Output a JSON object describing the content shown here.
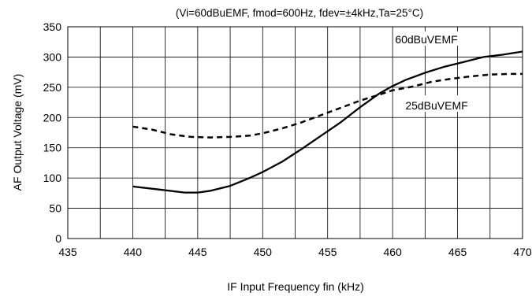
{
  "chart_data": {
    "type": "line",
    "title": "(Vi=60dBuEMF, fmod=600Hz, fdev=±4kHz,Ta=25°C)",
    "xlabel": "IF Input Frequency fin (kHz)",
    "ylabel": "AF Output Voltage (mV)",
    "xlim": [
      435,
      470
    ],
    "ylim": [
      0,
      350
    ],
    "x_ticks": [
      435,
      440,
      445,
      450,
      455,
      460,
      465,
      470
    ],
    "y_ticks": [
      0,
      50,
      100,
      150,
      200,
      250,
      300,
      350
    ],
    "x_tick_labels": [
      "435",
      "440",
      "445",
      "450",
      "455",
      "460",
      "465",
      "470"
    ],
    "y_tick_labels": [
      "0",
      "50",
      "100",
      "150",
      "200",
      "250",
      "300",
      "350"
    ],
    "grid": true,
    "minor_x_step": 2.5,
    "series": [
      {
        "name": "60dBuVEMF",
        "style": "solid",
        "color": "#000000",
        "x": [
          440,
          442,
          444,
          445,
          446,
          447.5,
          449,
          450,
          451.5,
          453,
          454.5,
          456,
          457.5,
          459,
          460,
          461,
          462.5,
          464,
          465.5,
          467,
          468.5,
          470
        ],
        "y": [
          86,
          81,
          76,
          76,
          79,
          87,
          100,
          110,
          127,
          148,
          170,
          192,
          217,
          240,
          252,
          262,
          274,
          284,
          292,
          300,
          304,
          309
        ]
      },
      {
        "name": "25dBuVEMF",
        "style": "dashed",
        "color": "#000000",
        "x": [
          440,
          441.5,
          443,
          444.5,
          446,
          447.5,
          449,
          450,
          451.5,
          453,
          454.5,
          456,
          457.5,
          459,
          460,
          461.5,
          463,
          464.5,
          466,
          467.5,
          469,
          470
        ],
        "y": [
          185,
          180,
          172,
          168,
          167,
          168,
          170,
          174,
          182,
          192,
          204,
          216,
          228,
          238,
          245,
          251,
          259,
          264,
          268,
          271,
          272,
          272
        ]
      }
    ],
    "annotations": [
      {
        "text": "60dBuVEMF",
        "series": 0
      },
      {
        "text": "25dBuVEMF",
        "series": 1
      }
    ]
  }
}
